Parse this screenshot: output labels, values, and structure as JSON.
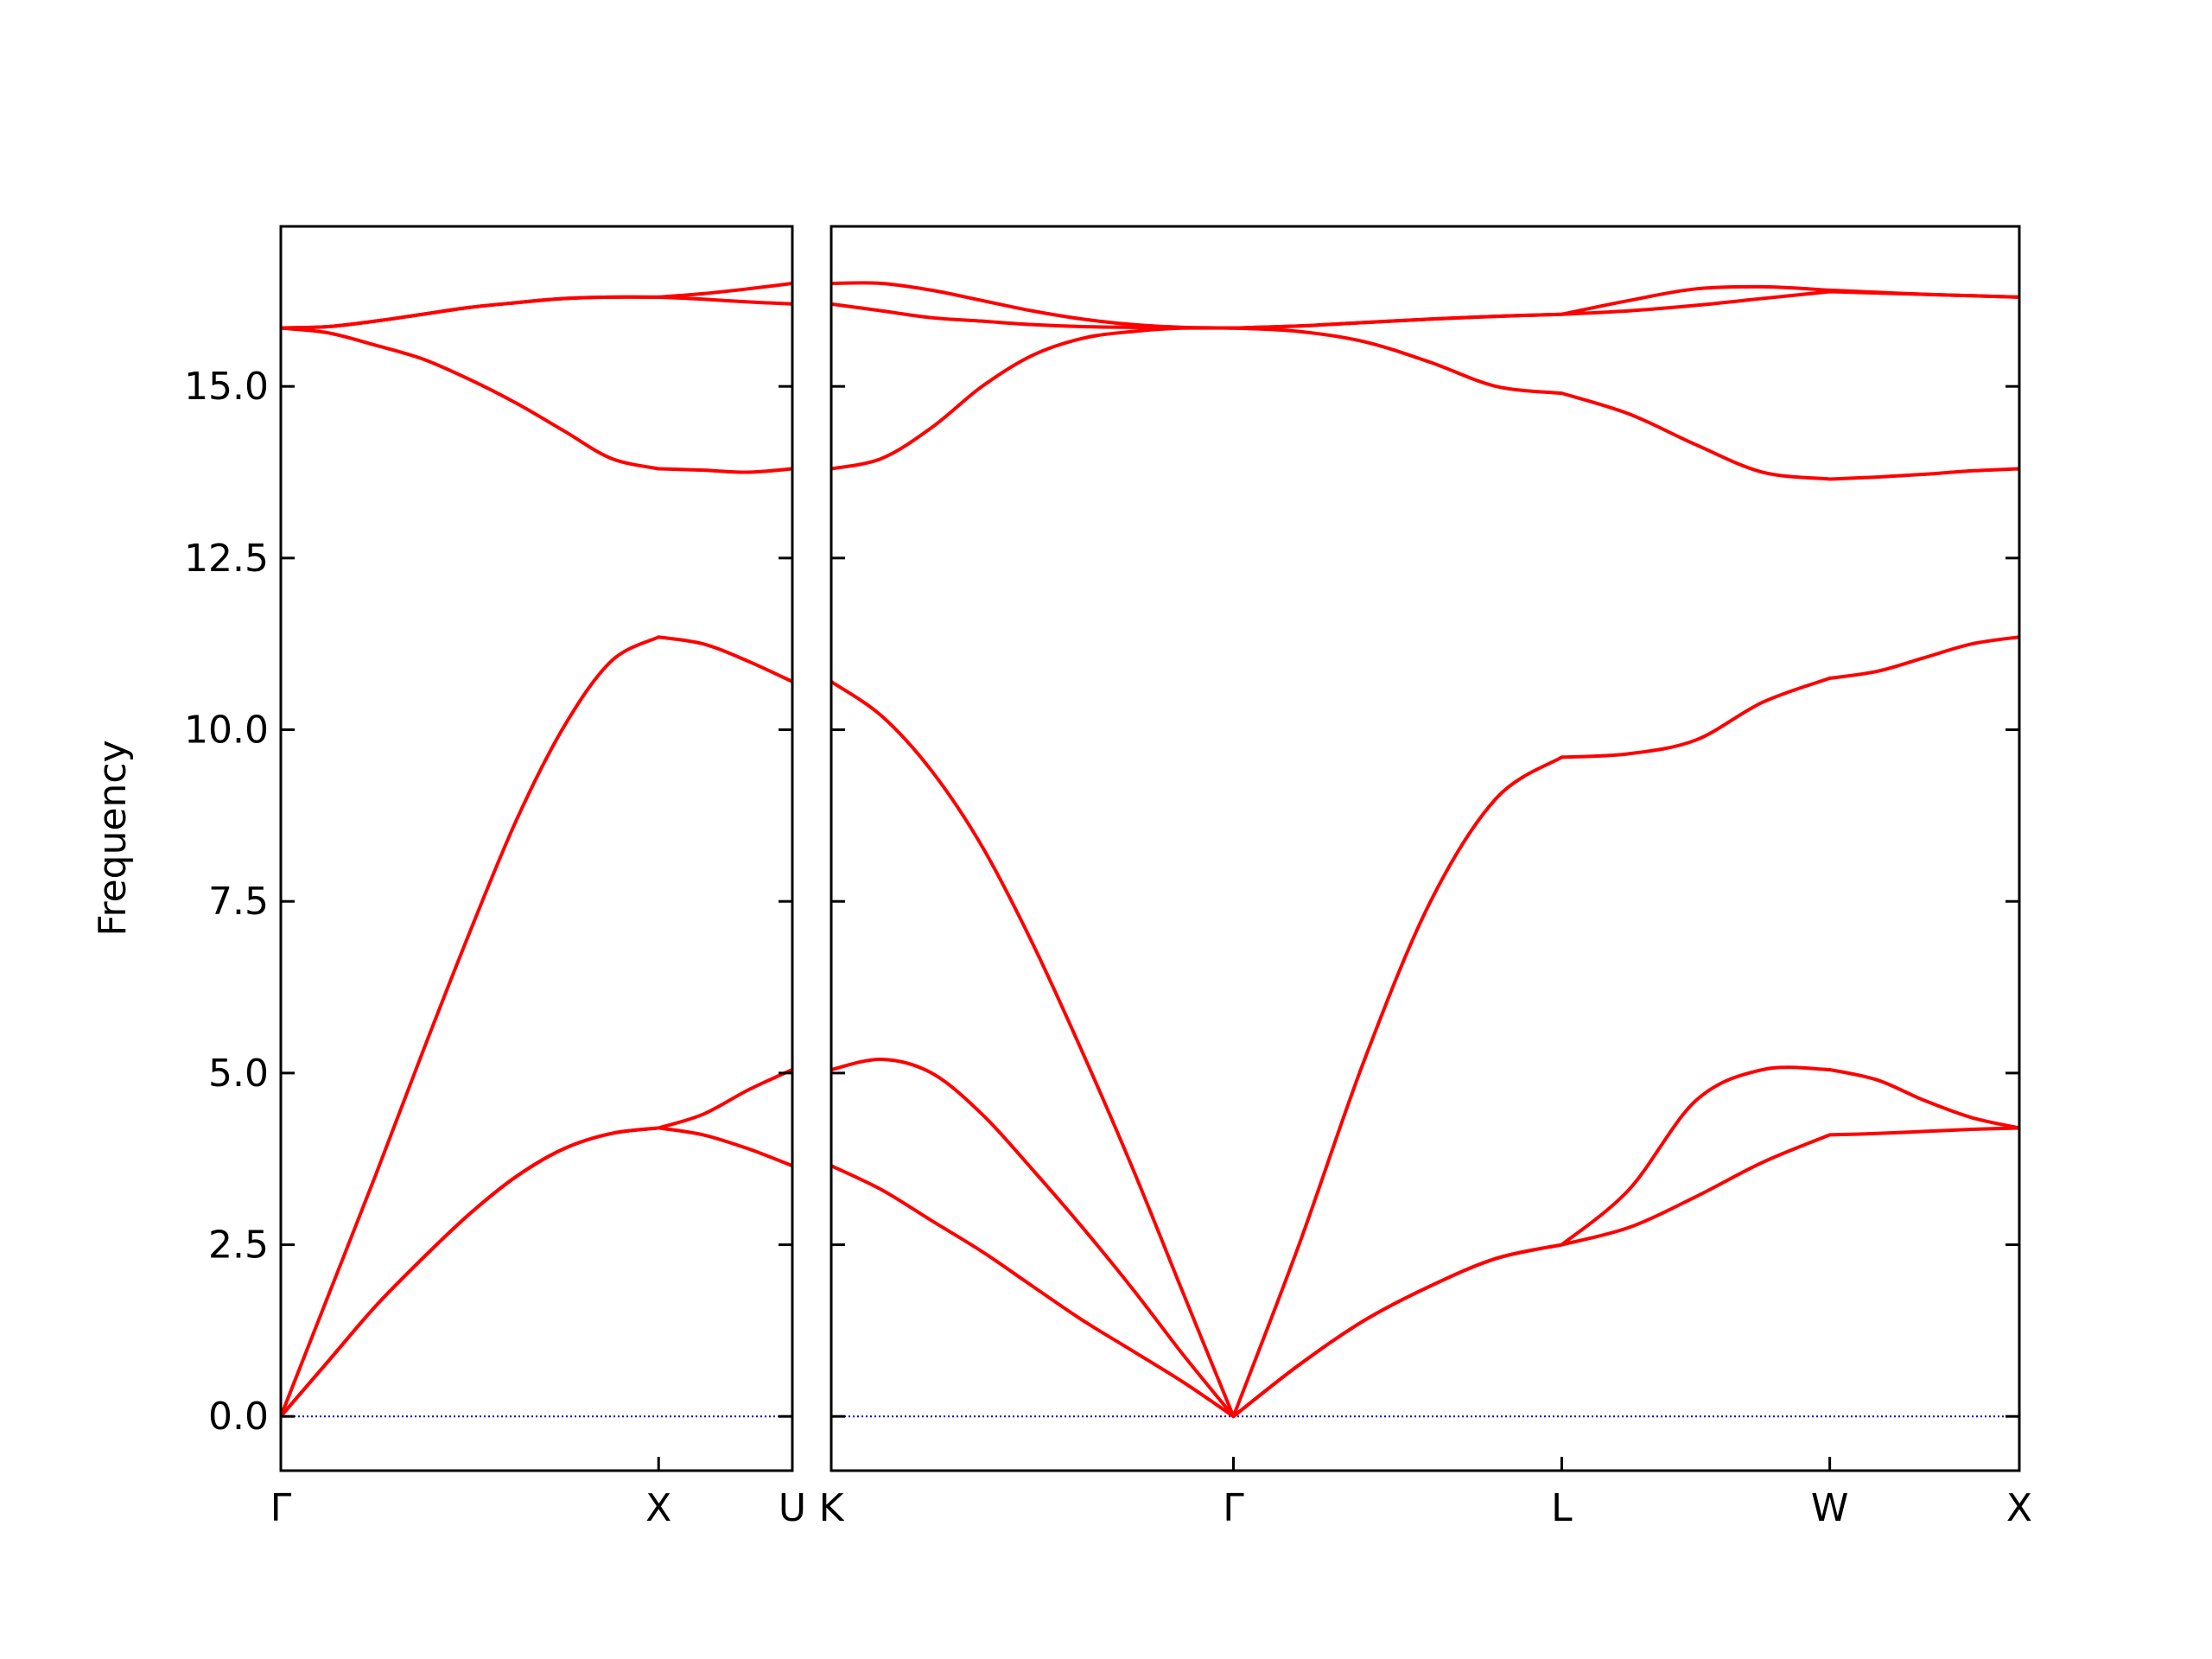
{
  "chart_data": [
    {
      "type": "line",
      "ylabel": "Frequency",
      "color": "#ff0000",
      "zero_line_color": "#0000cc",
      "xlim": [
        0,
        1.354
      ],
      "ylim": [
        -0.79,
        17.33
      ],
      "xticks": [
        {
          "value": 0,
          "label": "Γ"
        },
        {
          "value": 1.0,
          "label": "X"
        },
        {
          "value": 1.354,
          "label": "U"
        }
      ],
      "yticks": [
        {
          "value": 0,
          "label": "0.0"
        },
        2.5,
        {
          "value": 5,
          "label": "5.0"
        },
        7.5,
        {
          "value": 10,
          "label": "10.0"
        },
        12.5,
        {
          "value": 15,
          "label": "15.0"
        }
      ],
      "x": [
        0,
        0.125,
        0.25,
        0.375,
        0.5,
        0.625,
        0.75,
        0.875,
        1.0,
        1.118,
        1.236,
        1.354
      ],
      "series": [
        {
          "values": [
            0,
            0.8,
            1.6,
            2.3,
            2.95,
            3.5,
            3.9,
            4.12,
            4.2,
            4.4,
            4.75,
            5.05
          ]
        },
        {
          "values": [
            0,
            0.8,
            1.6,
            2.3,
            2.95,
            3.5,
            3.9,
            4.12,
            4.2,
            4.1,
            3.9,
            3.65
          ]
        },
        {
          "values": [
            0,
            1.75,
            3.5,
            5.3,
            7.05,
            8.7,
            10.05,
            11.0,
            11.35,
            11.25,
            11.0,
            10.7
          ]
        },
        {
          "values": [
            15.85,
            15.78,
            15.6,
            15.4,
            15.1,
            14.75,
            14.35,
            13.95,
            13.8,
            13.78,
            13.75,
            13.8
          ]
        },
        {
          "values": [
            15.85,
            15.87,
            15.95,
            16.05,
            16.15,
            16.22,
            16.28,
            16.3,
            16.3,
            16.35,
            16.42,
            16.5
          ]
        },
        {
          "values": [
            15.85,
            15.87,
            15.95,
            16.05,
            16.15,
            16.22,
            16.28,
            16.3,
            16.3,
            16.27,
            16.23,
            16.2
          ]
        }
      ]
    },
    {
      "type": "line",
      "color": "#ff0000",
      "zero_line_color": "#0000cc",
      "show_ytick_labels": false,
      "xlim": [
        0,
        3.134
      ],
      "ylim": [
        -0.79,
        17.33
      ],
      "xticks": [
        {
          "value": 0,
          "label": "K"
        },
        {
          "value": 1.061,
          "label": "Γ"
        },
        {
          "value": 1.927,
          "label": "L"
        },
        {
          "value": 2.634,
          "label": "W"
        },
        {
          "value": 3.134,
          "label": "X"
        }
      ],
      "yticks": [
        0,
        2.5,
        5,
        7.5,
        10,
        12.5,
        15
      ],
      "x": [
        0,
        0.133,
        0.265,
        0.398,
        0.53,
        0.663,
        0.796,
        0.928,
        1.061,
        1.234,
        1.407,
        1.581,
        1.754,
        1.927,
        2.104,
        2.281,
        2.457,
        2.634,
        2.759,
        2.884,
        3.009,
        3.134
      ],
      "series": [
        {
          "values": [
            3.65,
            3.3,
            2.85,
            2.4,
            1.9,
            1.4,
            0.95,
            0.5,
            0,
            0.75,
            1.4,
            1.9,
            2.3,
            2.5,
            2.75,
            3.2,
            3.7,
            4.1,
            4.12,
            4.15,
            4.18,
            4.2
          ]
        },
        {
          "values": [
            5.05,
            5.2,
            5.0,
            4.4,
            3.6,
            2.75,
            1.85,
            0.9,
            0,
            0.75,
            1.4,
            1.9,
            2.3,
            2.5,
            3.3,
            4.6,
            5.05,
            5.05,
            4.9,
            4.6,
            4.35,
            4.2
          ]
        },
        {
          "values": [
            10.7,
            10.2,
            9.4,
            8.3,
            6.9,
            5.3,
            3.6,
            1.8,
            0,
            2.5,
            5.2,
            7.5,
            9.0,
            9.6,
            9.65,
            9.85,
            10.4,
            10.75,
            10.85,
            11.05,
            11.25,
            11.35
          ]
        },
        {
          "values": [
            13.8,
            13.95,
            14.4,
            15.0,
            15.45,
            15.7,
            15.8,
            15.85,
            15.85,
            15.8,
            15.65,
            15.35,
            15.0,
            14.9,
            14.6,
            14.15,
            13.75,
            13.65,
            13.68,
            13.72,
            13.77,
            13.8
          ]
        },
        {
          "values": [
            16.2,
            16.1,
            16.0,
            15.95,
            15.9,
            15.87,
            15.86,
            15.85,
            15.85,
            15.88,
            15.93,
            15.98,
            16.02,
            16.05,
            16.1,
            16.18,
            16.28,
            16.38,
            16.36,
            16.34,
            16.32,
            16.3
          ]
        },
        {
          "values": [
            16.5,
            16.5,
            16.4,
            16.25,
            16.1,
            15.98,
            15.9,
            15.86,
            15.85,
            15.88,
            15.93,
            15.98,
            16.02,
            16.05,
            16.25,
            16.42,
            16.45,
            16.4,
            16.37,
            16.34,
            16.32,
            16.3
          ]
        }
      ]
    }
  ]
}
